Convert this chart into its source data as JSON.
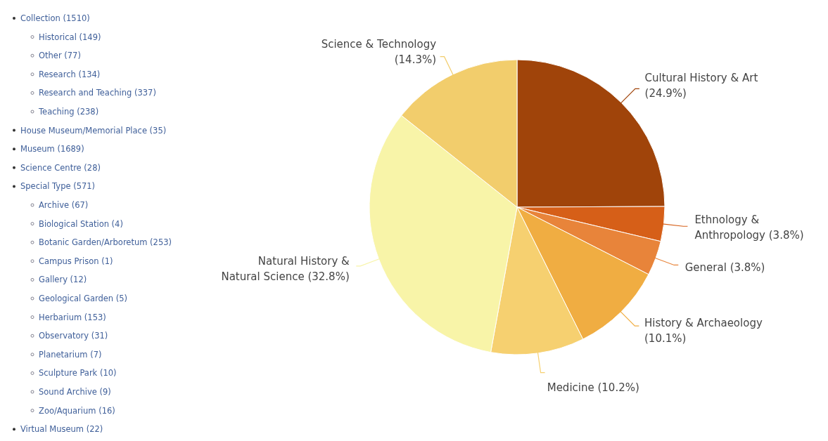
{
  "chart_data": [
    {
      "type": "other",
      "annotations": [
        "Collection (1510)",
        [
          "Historical (149)",
          "Other (77)",
          "Research (134)",
          "Research and Teaching (337)",
          "Teaching (238)"
        ],
        "House Museum/Memorial Place (35)",
        "Museum (1689)",
        "Science Centre (28)",
        "Special Type (571)",
        [
          "Archive (67)",
          "Biological Station (4)",
          "Botanic Garden/Arboretum (253)",
          "Campus Prison (1)",
          "Gallery (12)",
          "Geological Garden (5)",
          "Herbarium (153)",
          "Observatory (31)",
          "Planetarium (7)",
          "Sculpture Park (10)",
          "Sound Archive (9)",
          "Zoo/Aquarium (16)"
        ],
        "Virtual Museum (22)"
      ]
    },
    {
      "type": "pie",
      "categories": [
        "Cultural History & Art",
        "Ethnology & Anthropology",
        "General",
        "History & Archaeology",
        "Medicine",
        "Natural History & Natural Science",
        "Science & Technology"
      ],
      "values": [
        24.9,
        3.8,
        3.8,
        10.1,
        10.2,
        32.8,
        14.3
      ],
      "value_labels": [
        "(24.9%)",
        "(3.8%)",
        "(3.8%)",
        "(10.1%)",
        "(10.2%)",
        "(32.8%)",
        "(14.3%)"
      ],
      "colors": [
        "#a0440a",
        "#d65f18",
        "#e8843a",
        "#f0ad42",
        "#f6d070",
        "#f8f4a8",
        "#f2cd6c"
      ]
    }
  ]
}
